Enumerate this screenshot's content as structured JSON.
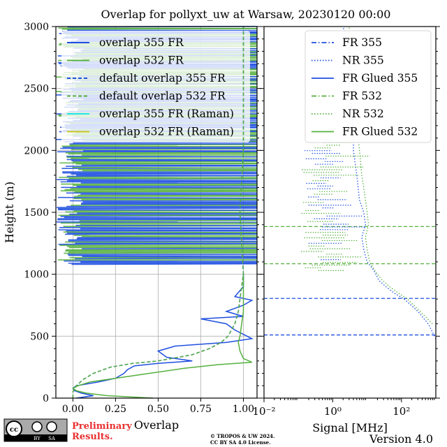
{
  "title": "Overlap for pollyxt_uw at Warsaw, 20230120 00:00",
  "footer": {
    "license_top": "cc",
    "license_by": "BY",
    "license_sa": "SA",
    "preliminary_line1": "Preliminary",
    "preliminary_line2": "Results.",
    "copyright_line1": "© TROPOS & UW 2024.",
    "copyright_line2": "CC BY SA 4.0 License.",
    "version": "Version 4.0"
  },
  "colors": {
    "blue": "#1f4fe0",
    "green": "#55b03e",
    "cyan": "#22e6e6",
    "olive": "#c8c81e",
    "grid": "#b0b0b0",
    "preliminary": "#e83030"
  },
  "chart_data": [
    {
      "type": "line",
      "xlabel": "Overlap",
      "ylabel": "Height (m)",
      "xlim": [
        -0.1,
        1.08
      ],
      "ylim": [
        0,
        3000
      ],
      "xticks": [
        "0.00",
        "0.25",
        "0.50",
        "0.75",
        "1.00"
      ],
      "yticks": [
        "0",
        "500",
        "1000",
        "1500",
        "2000",
        "2500",
        "3000"
      ],
      "grid": true,
      "legend_position": "top",
      "series": [
        {
          "name": "overlap 355 FR",
          "style": "solid",
          "color": "#1f4fe0",
          "height": [
            0,
            20,
            40,
            60,
            80,
            100,
            130,
            160,
            200,
            230,
            260,
            280,
            300,
            330,
            380,
            420,
            450,
            480,
            550,
            600,
            640,
            660,
            700,
            750,
            790,
            820,
            900,
            1000
          ],
          "values": [
            0.02,
            0.12,
            0.05,
            0.01,
            0.0,
            0.02,
            0.15,
            0.25,
            0.3,
            0.32,
            0.36,
            0.5,
            0.7,
            0.55,
            0.5,
            0.6,
            0.9,
            1.05,
            0.95,
            0.9,
            0.75,
            1.0,
            0.9,
            1.0,
            1.05,
            0.95,
            1.0,
            1.0
          ]
        },
        {
          "name": "overlap 532 FR",
          "style": "solid",
          "color": "#55b03e",
          "height": [
            0,
            20,
            40,
            60,
            80,
            100,
            130,
            160,
            200,
            240,
            270,
            290,
            320,
            380,
            450,
            500,
            600,
            700,
            800,
            900,
            1000
          ],
          "values": [
            0.47,
            0.2,
            0.08,
            0.02,
            0.0,
            0.03,
            0.1,
            0.25,
            0.45,
            0.65,
            0.85,
            1.05,
            1.0,
            0.98,
            0.97,
            0.98,
            0.99,
            1.0,
            1.0,
            1.0,
            1.0
          ]
        },
        {
          "name": "default overlap 355 FR",
          "style": "dashed",
          "color": "#1f4fe0",
          "height": [
            0,
            50,
            100,
            150,
            200,
            250,
            280,
            300,
            350,
            400,
            450,
            500,
            600,
            700,
            800,
            900,
            1000,
            1500,
            2000,
            2500,
            3000
          ],
          "values": [
            0.0,
            0.0,
            0.02,
            0.06,
            0.12,
            0.22,
            0.35,
            0.5,
            0.7,
            0.8,
            0.87,
            0.91,
            0.95,
            0.97,
            0.98,
            0.99,
            1.0,
            0.98,
            1.0,
            1.0,
            1.0
          ]
        },
        {
          "name": "default overlap 532 FR",
          "style": "dashed",
          "color": "#55b03e",
          "height": [
            0,
            50,
            100,
            150,
            200,
            250,
            280,
            300,
            350,
            400,
            450,
            500,
            600,
            700,
            800,
            900,
            1000,
            1500,
            2000,
            2500,
            3000
          ],
          "values": [
            0.0,
            0.0,
            0.02,
            0.06,
            0.12,
            0.22,
            0.35,
            0.5,
            0.7,
            0.8,
            0.87,
            0.91,
            0.95,
            0.97,
            0.98,
            0.99,
            1.0,
            0.98,
            1.0,
            1.0,
            1.0
          ]
        },
        {
          "name": "overlap 355 FR (Raman)",
          "style": "solid",
          "color": "#22e6e6",
          "height": [],
          "values": []
        },
        {
          "name": "overlap 532 FR (Raman)",
          "style": "solid",
          "color": "#c8c81e",
          "height": [],
          "values": []
        }
      ],
      "noise_band": {
        "from_height": 1080,
        "to_height": 3000,
        "description": "rapid oscillation between 0 and beyond axis"
      }
    },
    {
      "type": "line",
      "xlabel": "Signal [MHz]",
      "xscale": "log",
      "xlim": [
        0.01,
        1000
      ],
      "xticks": [
        "10^-2",
        "10^0",
        "10^2"
      ],
      "ylim": [
        0,
        3000
      ],
      "grid": false,
      "legend_position": "top-right",
      "series": [
        {
          "name": "FR 355",
          "style": "dashdot",
          "color": "#1f4fe0",
          "height": [],
          "values": []
        },
        {
          "name": "NR 355",
          "style": "dotted",
          "color": "#1f4fe0",
          "height": [
            480,
            600,
            700,
            800,
            850,
            900,
            950,
            1000,
            1050,
            1100,
            1200,
            1300,
            1400,
            1500,
            1600,
            1800,
            2000,
            2200,
            2500,
            2800,
            3000
          ],
          "values": [
            1000,
            600,
            300,
            120,
            60,
            35,
            22,
            18,
            14,
            10,
            8,
            7,
            9,
            8,
            6,
            5,
            4,
            4,
            3,
            3,
            2
          ]
        },
        {
          "name": "FR Glued 355",
          "style": "solid",
          "color": "#1f4fe0",
          "height": [],
          "values": []
        },
        {
          "name": "FR 532",
          "style": "dashdot",
          "color": "#55b03e",
          "height": [],
          "values": []
        },
        {
          "name": "NR 532",
          "style": "dotted",
          "color": "#55b03e",
          "height": [
            600,
            700,
            800,
            850,
            900,
            950,
            1000,
            1050,
            1100,
            1200,
            1300,
            1400,
            1500,
            1600,
            1800,
            2000,
            2200,
            2500,
            2800,
            3000
          ],
          "values": [
            800,
            350,
            150,
            80,
            45,
            28,
            20,
            15,
            12,
            10,
            9,
            11,
            10,
            9,
            7,
            6,
            5,
            4,
            3,
            3
          ]
        },
        {
          "name": "FR Glued 532",
          "style": "solid",
          "color": "#55b03e",
          "height": [],
          "values": []
        }
      ],
      "horizontal_markers": [
        {
          "height": 510,
          "color": "#1f4fe0",
          "style": "dashed"
        },
        {
          "height": 805,
          "color": "#1f4fe0",
          "style": "dashed"
        },
        {
          "height": 1085,
          "color": "#55b03e",
          "style": "dashed"
        },
        {
          "height": 1385,
          "color": "#55b03e",
          "style": "dashed"
        }
      ]
    }
  ]
}
